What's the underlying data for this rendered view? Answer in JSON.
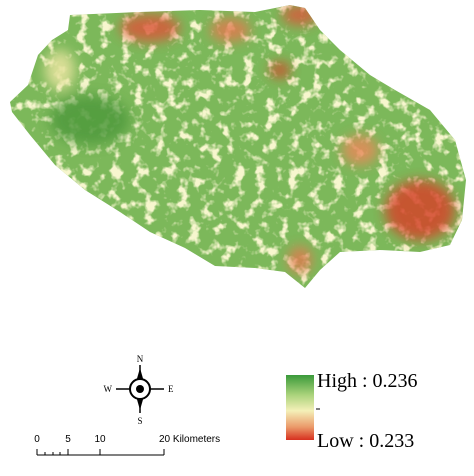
{
  "legend": {
    "high_label": "High : 0.236",
    "low_label": "Low : 0.233"
  },
  "scale_bar": {
    "labels": [
      "0",
      "5",
      "10",
      "20 Kilometers"
    ]
  },
  "compass": {
    "north": "N",
    "south": "S",
    "east": "E",
    "west": "W"
  }
}
